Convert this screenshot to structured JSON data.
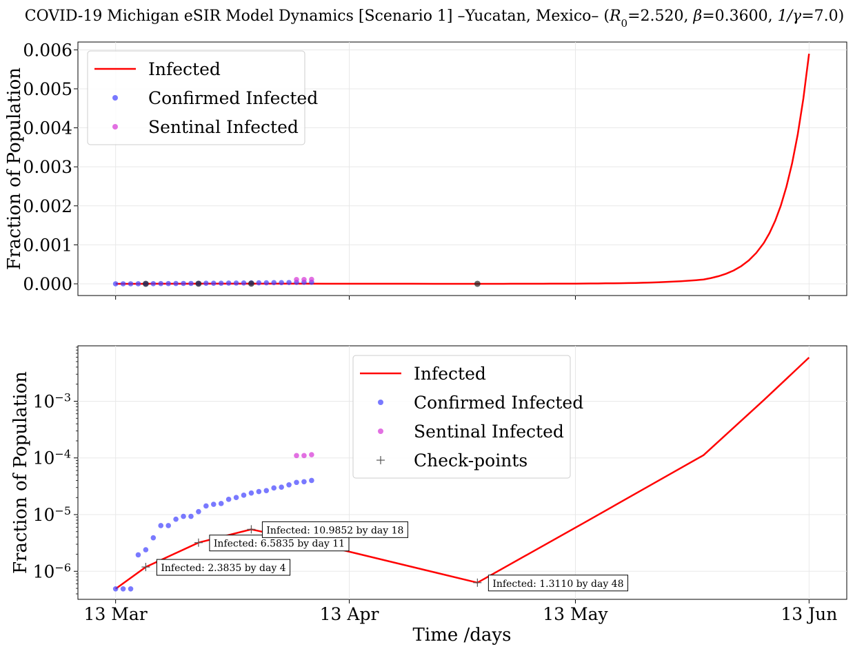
{
  "chart_data": {
    "title": "COVID-19 Michigan eSIR Model Dynamics [Scenario 1] –Yucatan, Mexico– (",
    "title_params": [
      {
        "sym": "R",
        "sub": "0",
        "value": "=2.520, "
      },
      {
        "sym": "β",
        "sub": "",
        "value": "=0.3600, "
      },
      {
        "sym": "1/γ",
        "sub": "",
        "value": "=7.0)"
      }
    ],
    "colors": {
      "infected": "#ff0000",
      "confirmed": "#4040ff",
      "sentinal": "#d633d6",
      "checkpoint": "#555555"
    },
    "xlabel": "Time /days",
    "x_ticks": [
      {
        "day": 0,
        "label": "13 Mar"
      },
      {
        "day": 31,
        "label": "13 Apr"
      },
      {
        "day": 61,
        "label": "13 May"
      },
      {
        "day": 92,
        "label": "13 Jun"
      }
    ],
    "xlim": [
      -5,
      97
    ],
    "infected_curve": [
      [
        0,
        4.9e-07
      ],
      [
        4,
        1.19e-06
      ],
      [
        11,
        3.2e-06
      ],
      [
        18,
        5.5e-06
      ],
      [
        25,
        3.45e-06
      ],
      [
        48,
        6.3e-07
      ],
      [
        55,
        2.1e-06
      ],
      [
        62,
        7e-06
      ],
      [
        70,
        2.8e-05
      ],
      [
        78,
        0.000112
      ],
      [
        86,
        0.00105
      ],
      [
        92,
        0.0059
      ]
    ],
    "confirmed_infected": [
      [
        0,
        4.9e-07
      ],
      [
        1,
        4.9e-07
      ],
      [
        2,
        4.9e-07
      ],
      [
        3,
        1.95e-06
      ],
      [
        4,
        2.4e-06
      ],
      [
        5,
        3.9e-06
      ],
      [
        6,
        6.4e-06
      ],
      [
        7,
        6.4e-06
      ],
      [
        8,
        8.3e-06
      ],
      [
        9,
        9.3e-06
      ],
      [
        10,
        9.3e-06
      ],
      [
        11,
        1.13e-05
      ],
      [
        12,
        1.42e-05
      ],
      [
        13,
        1.52e-05
      ],
      [
        14,
        1.57e-05
      ],
      [
        15,
        1.86e-05
      ],
      [
        16,
        2e-05
      ],
      [
        17,
        2.2e-05
      ],
      [
        18,
        2.4e-05
      ],
      [
        19,
        2.55e-05
      ],
      [
        20,
        2.65e-05
      ],
      [
        21,
        2.95e-05
      ],
      [
        22,
        3.05e-05
      ],
      [
        23,
        3.35e-05
      ],
      [
        24,
        3.7e-05
      ],
      [
        25,
        3.8e-05
      ],
      [
        26,
        4e-05
      ]
    ],
    "sentinal_infected": [
      [
        24,
        0.00011
      ],
      [
        25,
        0.00011
      ],
      [
        26,
        0.000114
      ]
    ],
    "checkpoints": [
      [
        4,
        1.19e-06
      ],
      [
        11,
        3.2e-06
      ],
      [
        18,
        5.5e-06
      ],
      [
        48,
        6.3e-07
      ]
    ],
    "top_panel": {
      "type": "line",
      "ylabel": "Fraction of Population",
      "ylim": [
        -0.0003,
        0.0062
      ],
      "y_ticks": [
        {
          "value": 0,
          "label": "0.000"
        },
        {
          "value": 0.001,
          "label": "0.001"
        },
        {
          "value": 0.002,
          "label": "0.002"
        },
        {
          "value": 0.003,
          "label": "0.003"
        },
        {
          "value": 0.004,
          "label": "0.004"
        },
        {
          "value": 0.005,
          "label": "0.005"
        },
        {
          "value": 0.006,
          "label": "0.006"
        }
      ],
      "grid": true,
      "legend_position": "upper-left",
      "legend": [
        {
          "kind": "line",
          "label": "Infected"
        },
        {
          "kind": "confirmed",
          "label": "Confirmed Infected"
        },
        {
          "kind": "sentinal",
          "label": "Sentinal Infected"
        }
      ]
    },
    "bottom_panel": {
      "type": "line",
      "scale": "log",
      "ylabel": "Fraction of Population",
      "ylim": [
        3.2e-07,
        0.0095
      ],
      "y_ticks": [
        {
          "value": 1e-06,
          "base": "10",
          "exp": "−6"
        },
        {
          "value": 1e-05,
          "base": "10",
          "exp": "−5"
        },
        {
          "value": 0.0001,
          "base": "10",
          "exp": "−4"
        },
        {
          "value": 0.001,
          "base": "10",
          "exp": "−3"
        }
      ],
      "grid": true,
      "legend_position": "upper-center",
      "legend": [
        {
          "kind": "line",
          "label": "Infected"
        },
        {
          "kind": "confirmed",
          "label": "Confirmed Infected"
        },
        {
          "kind": "sentinal",
          "label": "Sentinal Infected"
        },
        {
          "kind": "checkpoint",
          "label": "Check-points"
        }
      ],
      "annotations": [
        {
          "day": 4,
          "value": 1.19e-06,
          "text": "Infected: 2.3835 by day 4"
        },
        {
          "day": 11,
          "value": 3.2e-06,
          "text": "Infected: 6.5835 by day 11"
        },
        {
          "day": 18,
          "value": 5.5e-06,
          "text": "Infected: 10.9852 by day 18"
        },
        {
          "day": 48,
          "value": 6.3e-07,
          "text": "Infected: 1.3110 by day 48"
        }
      ]
    }
  }
}
